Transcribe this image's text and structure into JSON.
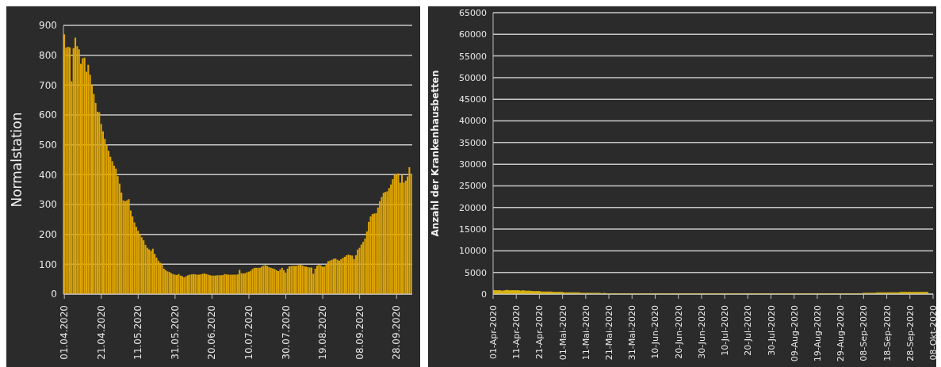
{
  "chart_data": [
    {
      "type": "bar",
      "ylabel": "Normalstation",
      "grid": "y",
      "x": [
        "2020-04-01",
        "2020-04-02",
        "2020-04-03",
        "2020-04-04",
        "2020-04-05",
        "2020-04-06",
        "2020-04-07",
        "2020-04-08",
        "2020-04-09",
        "2020-04-10",
        "2020-04-11",
        "2020-04-12",
        "2020-04-13",
        "2020-04-14",
        "2020-04-15",
        "2020-04-16",
        "2020-04-17",
        "2020-04-18",
        "2020-04-19",
        "2020-04-20",
        "2020-04-21",
        "2020-04-22",
        "2020-04-23",
        "2020-04-24",
        "2020-04-25",
        "2020-04-26",
        "2020-04-27",
        "2020-04-28",
        "2020-04-29",
        "2020-04-30",
        "2020-05-01",
        "2020-05-02",
        "2020-05-03",
        "2020-05-04",
        "2020-05-05",
        "2020-05-06",
        "2020-05-07",
        "2020-05-08",
        "2020-05-09",
        "2020-05-10",
        "2020-05-11",
        "2020-05-12",
        "2020-05-13",
        "2020-05-14",
        "2020-05-15",
        "2020-05-16",
        "2020-05-17",
        "2020-05-18",
        "2020-05-19",
        "2020-05-20",
        "2020-05-21",
        "2020-05-22",
        "2020-05-23",
        "2020-05-24",
        "2020-05-25",
        "2020-05-26",
        "2020-05-27",
        "2020-05-28",
        "2020-05-29",
        "2020-05-30",
        "2020-05-31",
        "2020-06-01",
        "2020-06-02",
        "2020-06-03",
        "2020-06-04",
        "2020-06-05",
        "2020-06-06",
        "2020-06-07",
        "2020-06-08",
        "2020-06-09",
        "2020-06-10",
        "2020-06-11",
        "2020-06-12",
        "2020-06-13",
        "2020-06-14",
        "2020-06-15",
        "2020-06-16",
        "2020-06-17",
        "2020-06-18",
        "2020-06-19",
        "2020-06-20",
        "2020-06-21",
        "2020-06-22",
        "2020-06-23",
        "2020-06-24",
        "2020-06-25",
        "2020-06-26",
        "2020-06-27",
        "2020-06-28",
        "2020-06-29",
        "2020-06-30",
        "2020-07-01",
        "2020-07-02",
        "2020-07-03",
        "2020-07-04",
        "2020-07-05",
        "2020-07-06",
        "2020-07-07",
        "2020-07-08",
        "2020-07-09",
        "2020-07-10",
        "2020-07-11",
        "2020-07-12",
        "2020-07-13",
        "2020-07-14",
        "2020-07-15",
        "2020-07-16",
        "2020-07-17",
        "2020-07-18",
        "2020-07-19",
        "2020-07-20",
        "2020-07-21",
        "2020-07-22",
        "2020-07-23",
        "2020-07-24",
        "2020-07-25",
        "2020-07-26",
        "2020-07-27",
        "2020-07-28",
        "2020-07-29",
        "2020-07-30",
        "2020-07-31",
        "2020-08-01",
        "2020-08-02",
        "2020-08-03",
        "2020-08-04",
        "2020-08-05",
        "2020-08-06",
        "2020-08-07",
        "2020-08-08",
        "2020-08-09",
        "2020-08-10",
        "2020-08-11",
        "2020-08-12",
        "2020-08-13",
        "2020-08-14",
        "2020-08-15",
        "2020-08-16",
        "2020-08-17",
        "2020-08-18",
        "2020-08-19",
        "2020-08-20",
        "2020-08-21",
        "2020-08-22",
        "2020-08-23",
        "2020-08-24",
        "2020-08-25",
        "2020-08-26",
        "2020-08-27",
        "2020-08-28",
        "2020-08-29",
        "2020-08-30",
        "2020-08-31",
        "2020-09-01",
        "2020-09-02",
        "2020-09-03",
        "2020-09-04",
        "2020-09-05",
        "2020-09-06",
        "2020-09-07",
        "2020-09-08",
        "2020-09-09",
        "2020-09-10",
        "2020-09-11",
        "2020-09-12",
        "2020-09-13",
        "2020-09-14",
        "2020-09-15",
        "2020-09-16",
        "2020-09-17",
        "2020-09-18",
        "2020-09-19",
        "2020-09-20",
        "2020-09-21",
        "2020-09-22",
        "2020-09-23",
        "2020-09-24",
        "2020-09-25",
        "2020-09-26",
        "2020-09-27",
        "2020-09-28",
        "2020-09-29",
        "2020-09-30",
        "2020-10-01",
        "2020-10-02",
        "2020-10-03",
        "2020-10-04",
        "2020-10-05",
        "2020-10-06"
      ],
      "series": [
        {
          "color": "#e0a600",
          "values": [
            870,
            825,
            828,
            826,
            713,
            824,
            859,
            830,
            820,
            771,
            790,
            792,
            745,
            768,
            735,
            700,
            670,
            640,
            611,
            609,
            570,
            545,
            520,
            500,
            480,
            460,
            445,
            430,
            420,
            395,
            370,
            340,
            314,
            311,
            314,
            318,
            280,
            260,
            240,
            225,
            212,
            200,
            190,
            180,
            165,
            155,
            150,
            145,
            152,
            135,
            122,
            112,
            105,
            98,
            85,
            80,
            76,
            74,
            70,
            67,
            65,
            64,
            67,
            62,
            60,
            56,
            60,
            63,
            65,
            66,
            67,
            66,
            65,
            65,
            66,
            68,
            69,
            67,
            65,
            63,
            62,
            62,
            62,
            63,
            63,
            63,
            64,
            67,
            66,
            65,
            65,
            65,
            65,
            65,
            66,
            81,
            70,
            69,
            70,
            73,
            75,
            78,
            84,
            88,
            88,
            88,
            88,
            92,
            95,
            97,
            94,
            90,
            88,
            86,
            84,
            80,
            77,
            82,
            88,
            80,
            72,
            85,
            93,
            94,
            95,
            94,
            95,
            97,
            98,
            96,
            93,
            92,
            90,
            89,
            89,
            68,
            85,
            95,
            98,
            96,
            92,
            92,
            100,
            110,
            112,
            115,
            118,
            119,
            115,
            112,
            117,
            121,
            125,
            130,
            132,
            130,
            129,
            117,
            130,
            149,
            155,
            166,
            175,
            186,
            210,
            242,
            260,
            268,
            270,
            271,
            290,
            311,
            325,
            339,
            342,
            344,
            355,
            367,
            385,
            399,
            402,
            404,
            373,
            399,
            373,
            380,
            394,
            425,
            401
          ]
        }
      ],
      "xlim": [
        "2020-04-01",
        "2020-10-06"
      ],
      "xticks": [
        {
          "value": "2020-04-01",
          "label": "01.04.2020"
        },
        {
          "value": "2020-04-21",
          "label": "21.04.2020"
        },
        {
          "value": "2020-05-11",
          "label": "11.05.2020"
        },
        {
          "value": "2020-05-31",
          "label": "31.05.2020"
        },
        {
          "value": "2020-06-20",
          "label": "20.06.2020"
        },
        {
          "value": "2020-07-10",
          "label": "10.07.2020"
        },
        {
          "value": "2020-07-30",
          "label": "30.07.2020"
        },
        {
          "value": "2020-08-19",
          "label": "19.08.2020"
        },
        {
          "value": "2020-09-08",
          "label": "08.09.2020"
        },
        {
          "value": "2020-09-28",
          "label": "28.09.2020"
        }
      ],
      "ylim": [
        0,
        900
      ],
      "yticks": [
        0,
        100,
        200,
        300,
        400,
        500,
        600,
        700,
        800,
        900
      ]
    },
    {
      "type": "area",
      "ylabel": "Anzahl der Krankenhausbetten",
      "grid": "y",
      "x": [
        "2020-04-01",
        "2020-04-02",
        "2020-04-03",
        "2020-04-04",
        "2020-04-05",
        "2020-04-06",
        "2020-04-07",
        "2020-04-08",
        "2020-04-09",
        "2020-04-10",
        "2020-04-11",
        "2020-04-12",
        "2020-04-13",
        "2020-04-14",
        "2020-04-15",
        "2020-04-16",
        "2020-04-17",
        "2020-04-18",
        "2020-04-19",
        "2020-04-20",
        "2020-04-21",
        "2020-04-22",
        "2020-04-23",
        "2020-04-24",
        "2020-04-25",
        "2020-04-26",
        "2020-04-27",
        "2020-04-28",
        "2020-04-29",
        "2020-04-30",
        "2020-05-01",
        "2020-05-02",
        "2020-05-03",
        "2020-05-04",
        "2020-05-05",
        "2020-05-06",
        "2020-05-07",
        "2020-05-08",
        "2020-05-09",
        "2020-05-10",
        "2020-05-11",
        "2020-05-12",
        "2020-05-13",
        "2020-05-14",
        "2020-05-15",
        "2020-05-16",
        "2020-05-17",
        "2020-05-18",
        "2020-05-19",
        "2020-05-20",
        "2020-05-21",
        "2020-05-22",
        "2020-05-23",
        "2020-05-24",
        "2020-05-25",
        "2020-05-26",
        "2020-05-27",
        "2020-05-28",
        "2020-05-29",
        "2020-05-30",
        "2020-05-31",
        "2020-06-01",
        "2020-06-02",
        "2020-06-03",
        "2020-06-04",
        "2020-06-05",
        "2020-06-06",
        "2020-06-07",
        "2020-06-08",
        "2020-06-09",
        "2020-06-10",
        "2020-06-11",
        "2020-06-12",
        "2020-06-13",
        "2020-06-14",
        "2020-06-15",
        "2020-06-16",
        "2020-06-17",
        "2020-06-18",
        "2020-06-19",
        "2020-06-20",
        "2020-06-21",
        "2020-06-22",
        "2020-06-23",
        "2020-06-24",
        "2020-06-25",
        "2020-06-26",
        "2020-06-27",
        "2020-06-28",
        "2020-06-29",
        "2020-06-30",
        "2020-07-01",
        "2020-07-02",
        "2020-07-03",
        "2020-07-04",
        "2020-07-05",
        "2020-07-06",
        "2020-07-07",
        "2020-07-08",
        "2020-07-09",
        "2020-07-10",
        "2020-07-11",
        "2020-07-12",
        "2020-07-13",
        "2020-07-14",
        "2020-07-15",
        "2020-07-16",
        "2020-07-17",
        "2020-07-18",
        "2020-07-19",
        "2020-07-20",
        "2020-07-21",
        "2020-07-22",
        "2020-07-23",
        "2020-07-24",
        "2020-07-25",
        "2020-07-26",
        "2020-07-27",
        "2020-07-28",
        "2020-07-29",
        "2020-07-30",
        "2020-07-31",
        "2020-08-01",
        "2020-08-02",
        "2020-08-03",
        "2020-08-04",
        "2020-08-05",
        "2020-08-06",
        "2020-08-07",
        "2020-08-08",
        "2020-08-09",
        "2020-08-10",
        "2020-08-11",
        "2020-08-12",
        "2020-08-13",
        "2020-08-14",
        "2020-08-15",
        "2020-08-16",
        "2020-08-17",
        "2020-08-18",
        "2020-08-19",
        "2020-08-20",
        "2020-08-21",
        "2020-08-22",
        "2020-08-23",
        "2020-08-24",
        "2020-08-25",
        "2020-08-26",
        "2020-08-27",
        "2020-08-28",
        "2020-08-29",
        "2020-08-30",
        "2020-08-31",
        "2020-09-01",
        "2020-09-02",
        "2020-09-03",
        "2020-09-04",
        "2020-09-05",
        "2020-09-06",
        "2020-09-07",
        "2020-09-08",
        "2020-09-09",
        "2020-09-10",
        "2020-09-11",
        "2020-09-12",
        "2020-09-13",
        "2020-09-14",
        "2020-09-15",
        "2020-09-16",
        "2020-09-17",
        "2020-09-18",
        "2020-09-19",
        "2020-09-20",
        "2020-09-21",
        "2020-09-22",
        "2020-09-23",
        "2020-09-24",
        "2020-09-25",
        "2020-09-26",
        "2020-09-27",
        "2020-09-28",
        "2020-09-29",
        "2020-09-30",
        "2020-10-01",
        "2020-10-02",
        "2020-10-03",
        "2020-10-04",
        "2020-10-05",
        "2020-10-06"
      ],
      "series": [
        {
          "color": "#d9b40c",
          "values": [
            900,
            800,
            800,
            800,
            700,
            800,
            900,
            800,
            800,
            800,
            800,
            800,
            700,
            800,
            700,
            700,
            700,
            600,
            600,
            600,
            600,
            500,
            500,
            500,
            500,
            500,
            400,
            400,
            400,
            400,
            400,
            300,
            300,
            300,
            300,
            300,
            300,
            300,
            200,
            200,
            200,
            200,
            200,
            200,
            200,
            200,
            200,
            100,
            200,
            100,
            100,
            100,
            100,
            100,
            100,
            100,
            100,
            100,
            100,
            100,
            100,
            100,
            100,
            100,
            100,
            100,
            100,
            100,
            100,
            100,
            100,
            100,
            100,
            100,
            100,
            100,
            100,
            100,
            100,
            100,
            100,
            100,
            100,
            100,
            100,
            100,
            100,
            100,
            100,
            100,
            100,
            100,
            100,
            100,
            100,
            100,
            100,
            100,
            100,
            100,
            100,
            100,
            100,
            100,
            100,
            100,
            100,
            100,
            100,
            100,
            100,
            100,
            100,
            100,
            100,
            100,
            100,
            100,
            100,
            100,
            100,
            100,
            100,
            100,
            100,
            100,
            100,
            100,
            100,
            100,
            100,
            100,
            100,
            100,
            100,
            100,
            100,
            100,
            100,
            100,
            100,
            100,
            100,
            100,
            100,
            100,
            100,
            100,
            100,
            100,
            100,
            100,
            100,
            100,
            100,
            100,
            100,
            100,
            100,
            100,
            200,
            200,
            200,
            200,
            200,
            200,
            300,
            300,
            300,
            300,
            300,
            300,
            300,
            300,
            300,
            300,
            400,
            400,
            400,
            400,
            400,
            400,
            400,
            400,
            400,
            400,
            400,
            400,
            400
          ]
        }
      ],
      "xlim": [
        "2020-04-01",
        "2020-10-08"
      ],
      "xticks": [
        {
          "value": "2020-04-01",
          "label": "01-Apr-2020"
        },
        {
          "value": "2020-04-11",
          "label": "11-Apr-2020"
        },
        {
          "value": "2020-04-21",
          "label": "21-Apr-2020"
        },
        {
          "value": "2020-05-01",
          "label": "01-Mai-2020"
        },
        {
          "value": "2020-05-11",
          "label": "11-Mai-2020"
        },
        {
          "value": "2020-05-21",
          "label": "21-Mai-2020"
        },
        {
          "value": "2020-05-31",
          "label": "31-Mai-2020"
        },
        {
          "value": "2020-06-10",
          "label": "10-Jun-2020"
        },
        {
          "value": "2020-06-20",
          "label": "20-Jun-2020"
        },
        {
          "value": "2020-06-30",
          "label": "30-Jun-2020"
        },
        {
          "value": "2020-07-10",
          "label": "10-Jul-2020"
        },
        {
          "value": "2020-07-20",
          "label": "20-Jul-2020"
        },
        {
          "value": "2020-07-30",
          "label": "30-Jul-2020"
        },
        {
          "value": "2020-08-09",
          "label": "09-Aug-2020"
        },
        {
          "value": "2020-08-19",
          "label": "19-Aug-2020"
        },
        {
          "value": "2020-08-29",
          "label": "29-Aug-2020"
        },
        {
          "value": "2020-09-08",
          "label": "08-Sep-2020"
        },
        {
          "value": "2020-09-18",
          "label": "18-Sep-2020"
        },
        {
          "value": "2020-09-28",
          "label": "28-Sep-2020"
        },
        {
          "value": "2020-10-08",
          "label": "08-Okt-2020"
        }
      ],
      "ylim": [
        0,
        65000
      ],
      "yticks": [
        0,
        5000,
        10000,
        15000,
        20000,
        25000,
        30000,
        35000,
        40000,
        45000,
        50000,
        55000,
        60000,
        65000
      ]
    }
  ]
}
